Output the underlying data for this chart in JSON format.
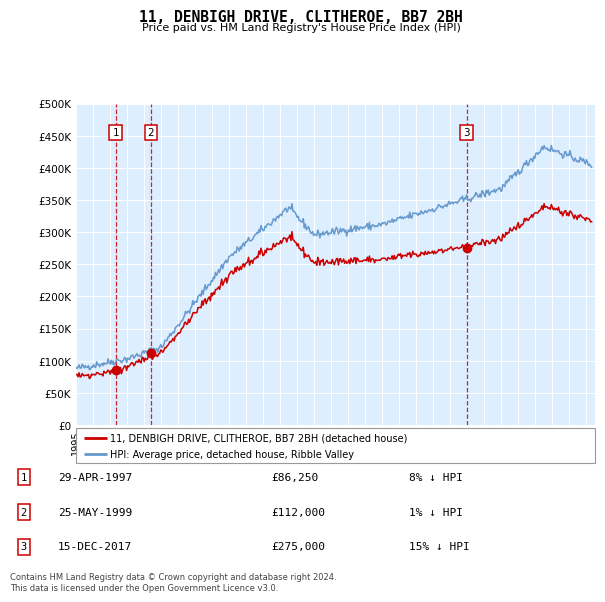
{
  "title": "11, DENBIGH DRIVE, CLITHEROE, BB7 2BH",
  "subtitle": "Price paid vs. HM Land Registry's House Price Index (HPI)",
  "ylabel_ticks": [
    "£0",
    "£50K",
    "£100K",
    "£150K",
    "£200K",
    "£250K",
    "£300K",
    "£350K",
    "£400K",
    "£450K",
    "£500K"
  ],
  "ytick_values": [
    0,
    50000,
    100000,
    150000,
    200000,
    250000,
    300000,
    350000,
    400000,
    450000,
    500000
  ],
  "ylim": [
    0,
    500000
  ],
  "xlim_start": 1995.0,
  "xlim_end": 2025.5,
  "sale_dates": [
    1997.33,
    1999.4,
    2017.96
  ],
  "sale_prices": [
    86250,
    112000,
    275000
  ],
  "sale_labels": [
    "1",
    "2",
    "3"
  ],
  "sale_info": [
    {
      "label": "1",
      "date": "29-APR-1997",
      "price": "£86,250",
      "pct": "8% ↓ HPI"
    },
    {
      "label": "2",
      "date": "25-MAY-1999",
      "price": "£112,000",
      "pct": "1% ↓ HPI"
    },
    {
      "label": "3",
      "date": "15-DEC-2017",
      "price": "£275,000",
      "pct": "15% ↓ HPI"
    }
  ],
  "legend_line1": "11, DENBIGH DRIVE, CLITHEROE, BB7 2BH (detached house)",
  "legend_line2": "HPI: Average price, detached house, Ribble Valley",
  "line_color_red": "#cc0000",
  "line_color_blue": "#6699cc",
  "line_fill_blue": "#ddeeff",
  "dashed_color": "#cc0000",
  "plot_bg": "#ddeeff",
  "footnote": "Contains HM Land Registry data © Crown copyright and database right 2024.\nThis data is licensed under the Open Government Licence v3.0."
}
